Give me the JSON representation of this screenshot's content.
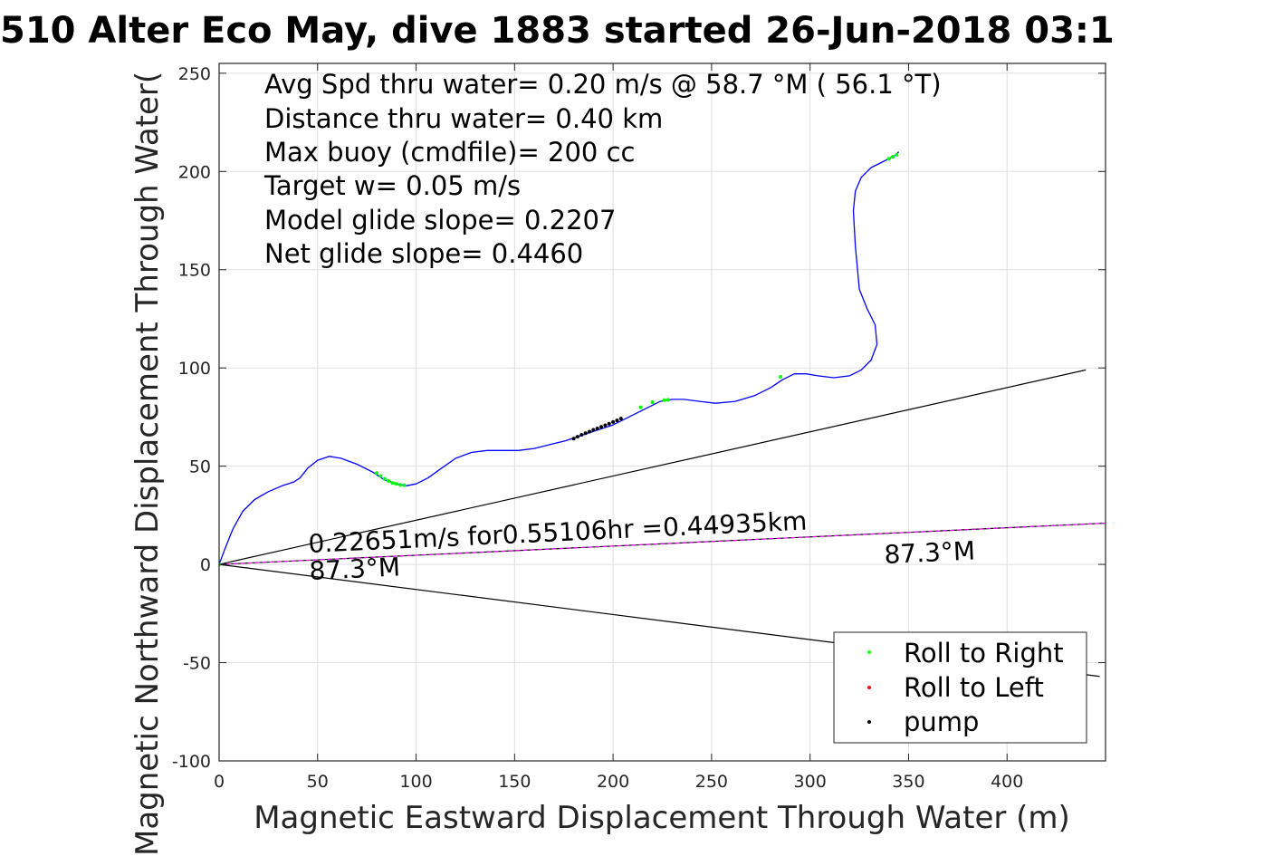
{
  "chart_data": {
    "type": "line",
    "title": "510 Alter Eco May, dive 1883 started 26-Jun-2018 03:1",
    "xlabel": "Magnetic Eastward Displacement Through Water (m)",
    "ylabel": "Magnetic Northward Displacement Through Water(",
    "xlim": [
      0,
      450
    ],
    "ylim": [
      -100,
      255
    ],
    "xticks": [
      0,
      50,
      100,
      150,
      200,
      250,
      300,
      350,
      400
    ],
    "yticks": [
      -100,
      -50,
      0,
      50,
      100,
      150,
      200,
      250
    ],
    "grid": true,
    "legend_position": "bottom-right",
    "info_lines": [
      "Avg Spd thru water=  0.20 m/s @  58.7 °M ( 56.1 °T)",
      "Distance thru water=  0.40 km",
      "Max buoy (cmdfile)= 200 cc",
      "Target w= 0.05 m/s",
      "Model glide slope= 0.2207",
      "Net glide slope= 0.4460"
    ],
    "annotations": {
      "speed_text": "0.22651m/s for0.55106hr =0.44935km",
      "heading_text_left": "87.3°M",
      "heading_text_right": "87.3°M"
    },
    "track": {
      "name": "track",
      "color": "#0000ff",
      "x": [
        0,
        3,
        7,
        12,
        18,
        25,
        32,
        38,
        41,
        45,
        50,
        56,
        62,
        70,
        78,
        84,
        90,
        95,
        100,
        106,
        113,
        120,
        128,
        136,
        144,
        152,
        160,
        168,
        176,
        182,
        188,
        194,
        200,
        206,
        212,
        218,
        224,
        230,
        236,
        244,
        252,
        262,
        272,
        280,
        286,
        292,
        298,
        304,
        312,
        320,
        326,
        331,
        334,
        333,
        329,
        325,
        323,
        322,
        323,
        326,
        331,
        337,
        343,
        345
      ],
      "y": [
        0,
        8,
        18,
        27,
        33,
        37,
        40,
        42,
        44,
        49,
        53,
        55,
        54,
        51,
        47,
        43,
        41,
        40,
        41,
        44,
        49,
        54,
        57,
        58,
        58,
        58,
        59,
        61,
        63,
        65,
        67,
        69,
        71,
        74,
        77,
        80,
        83,
        84,
        84,
        83,
        82,
        83,
        86,
        90,
        94,
        97,
        97,
        96,
        95,
        96,
        99,
        104,
        112,
        122,
        130,
        140,
        162,
        180,
        190,
        197,
        202,
        205,
        208,
        210
      ]
    },
    "roll_to_right": {
      "name": "Roll to Right",
      "color": "#00ff00",
      "x": [
        80,
        82,
        84,
        86,
        88,
        90,
        92,
        94,
        214,
        220,
        226,
        228,
        285,
        340,
        342,
        344
      ],
      "y": [
        46.5,
        45,
        43.5,
        42.5,
        41.5,
        41,
        40.5,
        40.3,
        80,
        82.5,
        83.6,
        83.8,
        95.5,
        206.5,
        207.5,
        208.5
      ]
    },
    "roll_to_left": {
      "name": "Roll to Left",
      "color": "#ff0000",
      "x": [],
      "y": []
    },
    "pump": {
      "name": "pump",
      "color": "#000000",
      "x": [
        180,
        182,
        184,
        186,
        188,
        190,
        192,
        194,
        196,
        198,
        200,
        202,
        204
      ],
      "y": [
        64,
        65,
        66,
        66.8,
        67.6,
        68.5,
        69.2,
        70,
        70.8,
        71.6,
        72.5,
        73.3,
        74.2
      ]
    },
    "guide_lines": [
      {
        "name": "upper-bound",
        "color": "#000000",
        "x": [
          0,
          440
        ],
        "y": [
          0,
          99
        ]
      },
      {
        "name": "lower-bound",
        "color": "#000000",
        "x": [
          0,
          447
        ],
        "y": [
          0,
          -57
        ]
      },
      {
        "name": "net-heading-black",
        "color": "#000000",
        "x": [
          0,
          450
        ],
        "y": [
          0,
          21
        ]
      },
      {
        "name": "net-heading-magenta",
        "color": "#ff00ff",
        "x": [
          0,
          450
        ],
        "y": [
          0,
          21
        ]
      }
    ]
  }
}
